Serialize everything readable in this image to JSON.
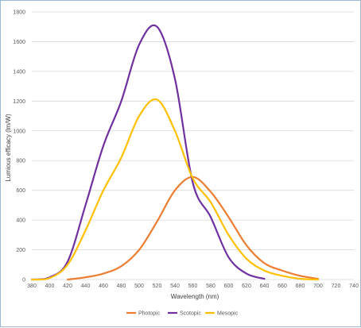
{
  "chart_data": {
    "type": "line",
    "title": "",
    "xlabel": "Wavelength (nm)",
    "ylabel": "Lumious efficacy (lm/W)",
    "categories": [
      "380",
      "400",
      "420",
      "440",
      "460",
      "480",
      "500",
      "520",
      "540",
      "560",
      "580",
      "600",
      "620",
      "640",
      "660",
      "680",
      "700",
      "720",
      "740"
    ],
    "xlim": [
      380,
      740
    ],
    "ylim": [
      0,
      1800
    ],
    "yticks": [
      0,
      200,
      400,
      600,
      800,
      1000,
      1200,
      1400,
      1600,
      1800
    ],
    "grid": true,
    "legend_position": "bottom",
    "series": [
      {
        "name": "Photopic",
        "color": "#ed7d31",
        "points": [
          [
            420,
            0
          ],
          [
            440,
            15
          ],
          [
            460,
            40
          ],
          [
            480,
            90
          ],
          [
            500,
            200
          ],
          [
            520,
            390
          ],
          [
            540,
            600
          ],
          [
            560,
            690
          ],
          [
            580,
            590
          ],
          [
            600,
            420
          ],
          [
            620,
            230
          ],
          [
            640,
            110
          ],
          [
            660,
            60
          ],
          [
            680,
            25
          ],
          [
            700,
            5
          ]
        ]
      },
      {
        "name": "Scotopic",
        "color": "#7030a0",
        "points": [
          [
            380,
            0
          ],
          [
            400,
            15
          ],
          [
            420,
            120
          ],
          [
            440,
            500
          ],
          [
            460,
            900
          ],
          [
            480,
            1200
          ],
          [
            500,
            1580
          ],
          [
            520,
            1700
          ],
          [
            540,
            1350
          ],
          [
            560,
            650
          ],
          [
            580,
            420
          ],
          [
            600,
            150
          ],
          [
            620,
            40
          ],
          [
            640,
            5
          ]
        ]
      },
      {
        "name": "Mesopic",
        "color": "#ffc000",
        "points": [
          [
            380,
            0
          ],
          [
            400,
            10
          ],
          [
            420,
            100
          ],
          [
            440,
            330
          ],
          [
            460,
            600
          ],
          [
            480,
            820
          ],
          [
            500,
            1100
          ],
          [
            520,
            1210
          ],
          [
            540,
            1000
          ],
          [
            560,
            680
          ],
          [
            580,
            520
          ],
          [
            600,
            300
          ],
          [
            620,
            140
          ],
          [
            640,
            60
          ],
          [
            660,
            25
          ],
          [
            680,
            5
          ],
          [
            700,
            0
          ]
        ]
      }
    ]
  }
}
